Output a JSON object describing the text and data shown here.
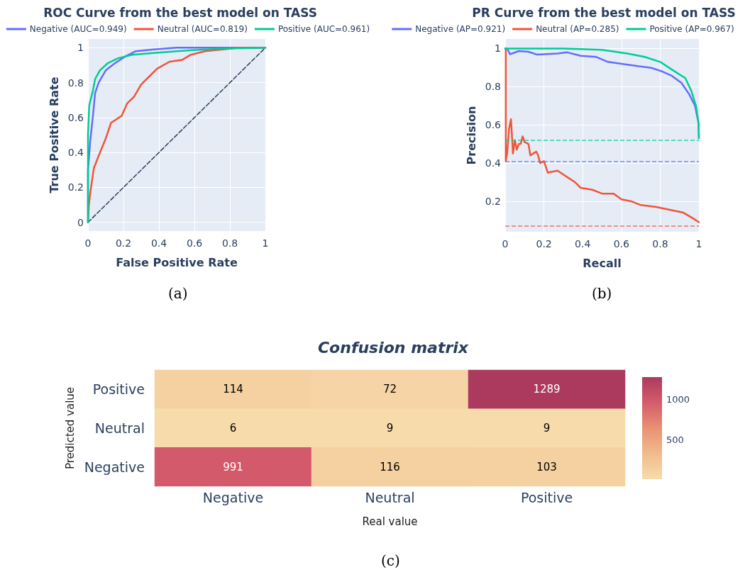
{
  "chart_data": [
    {
      "type": "line",
      "title": "ROC Curve from the best model on TASS",
      "xlabel": "False Positive Rate",
      "ylabel": "True Positive Rate",
      "annotations": [
        "(a)"
      ],
      "xlim": [
        0,
        1
      ],
      "ylim": [
        -0.05,
        1.05
      ],
      "xticks": [
        0,
        0.2,
        0.4,
        0.6,
        0.8,
        1
      ],
      "yticks": [
        0,
        0.2,
        0.4,
        0.6,
        0.8,
        1
      ],
      "grid": true,
      "legend": "top",
      "line_style": "solid",
      "series": [
        {
          "name": "Negative (AUC=0.949)",
          "color": "#636efa",
          "x": [
            0,
            0,
            0.013,
            0.027,
            0.04,
            0.06,
            0.1,
            0.15,
            0.21,
            0.27,
            0.37,
            0.5,
            1
          ],
          "values": [
            0,
            0.3,
            0.47,
            0.6,
            0.74,
            0.8,
            0.87,
            0.91,
            0.95,
            0.98,
            0.99,
            1,
            1
          ]
        },
        {
          "name": "Neutral (AUC=0.819)",
          "color": "#ef553b",
          "x": [
            0,
            0.005,
            0.013,
            0.033,
            0.06,
            0.1,
            0.13,
            0.19,
            0.22,
            0.26,
            0.3,
            0.35,
            0.39,
            0.46,
            0.53,
            0.58,
            0.66,
            0.76,
            0.85,
            1
          ],
          "values": [
            0,
            0.1,
            0.17,
            0.31,
            0.38,
            0.48,
            0.57,
            0.61,
            0.68,
            0.72,
            0.79,
            0.84,
            0.88,
            0.92,
            0.93,
            0.96,
            0.98,
            0.99,
            1,
            1
          ]
        },
        {
          "name": "Positive (AUC=0.961)",
          "color": "#00cc96",
          "x": [
            0,
            0,
            0.007,
            0.027,
            0.04,
            0.067,
            0.11,
            0.17,
            0.25,
            0.37,
            0.57,
            0.77,
            1
          ],
          "values": [
            0,
            0.5,
            0.67,
            0.75,
            0.82,
            0.87,
            0.91,
            0.94,
            0.96,
            0.97,
            0.985,
            0.995,
            1
          ]
        },
        {
          "color": "#2a3f5f",
          "line_style": "dashed",
          "x": [
            0,
            1
          ],
          "values": [
            0,
            1
          ]
        }
      ]
    },
    {
      "type": "line",
      "title": "PR Curve from the best model on TASS",
      "xlabel": "Recall",
      "ylabel": "Precision",
      "annotations": [
        "(b)"
      ],
      "xlim": [
        0,
        1
      ],
      "ylim": [
        0.04,
        1.05
      ],
      "xticks": [
        0,
        0.2,
        0.4,
        0.6,
        0.8,
        1
      ],
      "yticks": [
        0.2,
        0.4,
        0.6,
        0.8,
        1
      ],
      "grid": true,
      "legend": "top",
      "line_style": "solid",
      "series": [
        {
          "name": "Negative (AP=0.921)",
          "color": "#636efa",
          "x": [
            0,
            0.01,
            0.025,
            0.07,
            0.12,
            0.165,
            0.27,
            0.32,
            0.39,
            0.47,
            0.53,
            0.6,
            0.69,
            0.75,
            0.81,
            0.86,
            0.91,
            0.95,
            0.98,
            0.998,
            1
          ],
          "values": [
            1,
            1,
            0.97,
            0.987,
            0.983,
            0.968,
            0.974,
            0.98,
            0.962,
            0.956,
            0.93,
            0.92,
            0.907,
            0.9,
            0.88,
            0.857,
            0.82,
            0.76,
            0.7,
            0.61,
            0.53
          ]
        },
        {
          "name": "Neutral (AP=0.285)",
          "color": "#ef553b",
          "x": [
            0,
            0.003,
            0.003,
            0.01,
            0.02,
            0.03,
            0.04,
            0.05,
            0.06,
            0.07,
            0.08,
            0.09,
            0.1,
            0.12,
            0.13,
            0.16,
            0.17,
            0.18,
            0.2,
            0.22,
            0.27,
            0.3,
            0.33,
            0.36,
            0.39,
            0.45,
            0.5,
            0.56,
            0.6,
            0.65,
            0.7,
            0.78,
            0.85,
            0.92,
            0.97,
            1
          ],
          "values": [
            1,
            1,
            0.41,
            0.45,
            0.58,
            0.63,
            0.45,
            0.52,
            0.47,
            0.5,
            0.5,
            0.54,
            0.51,
            0.5,
            0.44,
            0.46,
            0.44,
            0.4,
            0.41,
            0.35,
            0.36,
            0.34,
            0.32,
            0.3,
            0.27,
            0.26,
            0.24,
            0.24,
            0.21,
            0.2,
            0.18,
            0.17,
            0.155,
            0.14,
            0.11,
            0.09
          ]
        },
        {
          "name": "Positive (AP=0.967)",
          "color": "#00cc96",
          "x": [
            0,
            0.3,
            0.5,
            0.63,
            0.72,
            0.8,
            0.86,
            0.93,
            0.96,
            0.985,
            0.998,
            1
          ],
          "values": [
            1,
            1,
            0.993,
            0.974,
            0.956,
            0.93,
            0.89,
            0.845,
            0.78,
            0.7,
            0.61,
            0.53
          ]
        }
      ],
      "ref_lines": [
        {
          "axis": "y",
          "value": 0.515,
          "color": "#00cc96",
          "line_style": "dashed"
        },
        {
          "axis": "y",
          "value": 0.407,
          "color": "#636efa",
          "line_style": "dashed"
        },
        {
          "axis": "y",
          "value": 0.074,
          "color": "#ef553b",
          "line_style": "dashed"
        }
      ]
    },
    {
      "type": "heatmap",
      "title": "Confusion matrix",
      "xlabel": "Real value",
      "ylabel": "Predicted value",
      "annotations": [
        "(c)"
      ],
      "categories": [
        "Negative",
        "Neutral",
        "Positive"
      ],
      "y_categories": [
        "Positive",
        "Neutral",
        "Negative"
      ],
      "cells": [
        [
          114,
          72,
          1289
        ],
        [
          6,
          9,
          9
        ],
        [
          991,
          116,
          103
        ]
      ],
      "data_labels": true,
      "clim": [
        6,
        1289
      ],
      "cticks": [
        500,
        1000
      ]
    }
  ]
}
